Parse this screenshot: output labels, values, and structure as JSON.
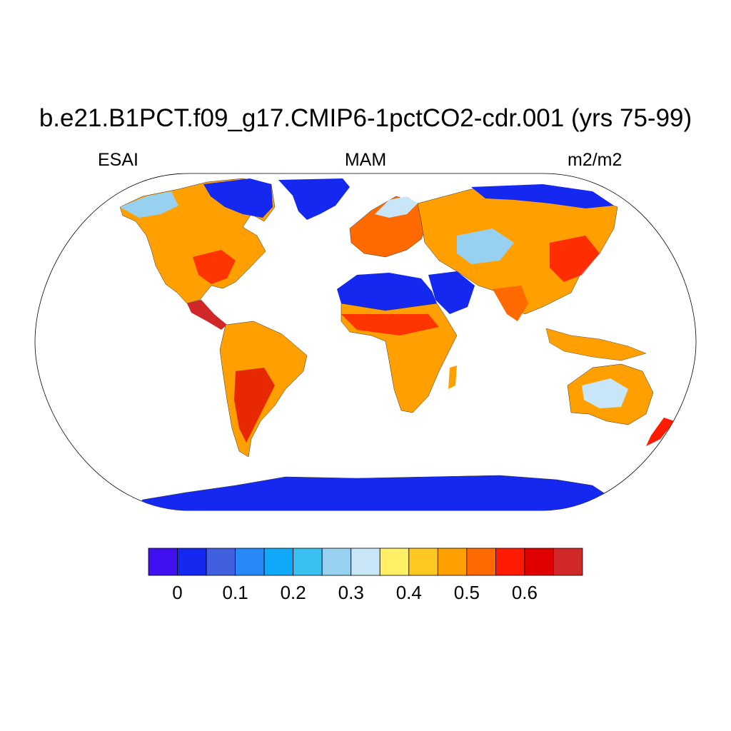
{
  "header": {
    "title": "b.e21.B1PCT.f09_g17.CMIP6-1pctCO2-cdr.001 (yrs 75-99)",
    "variable": "ESAI",
    "season": "MAM",
    "units": "m2/m2"
  },
  "map": {
    "projection": "Robinson",
    "ocean_color": "#ffffff",
    "coastlines": true
  },
  "colorbar": {
    "colors": [
      "#4010f0",
      "#1428f0",
      "#4060e0",
      "#2888f8",
      "#10a8f8",
      "#38c0f0",
      "#98d0f0",
      "#c8e6f8",
      "#fff066",
      "#ffc820",
      "#ffa000",
      "#ff6a00",
      "#ff1a00",
      "#e00000",
      "#d02828"
    ],
    "tick_labels": [
      "0",
      "0.1",
      "0.2",
      "0.3",
      "0.4",
      "0.5",
      "0.6"
    ],
    "tick_values": [
      0,
      0.1,
      0.2,
      0.3,
      0.4,
      0.5,
      0.6
    ],
    "levels": [
      -0.05,
      0,
      0.05,
      0.1,
      0.15,
      0.2,
      0.25,
      0.3,
      0.35,
      0.4,
      0.45,
      0.5,
      0.55,
      0.6,
      0.65,
      0.7
    ]
  }
}
